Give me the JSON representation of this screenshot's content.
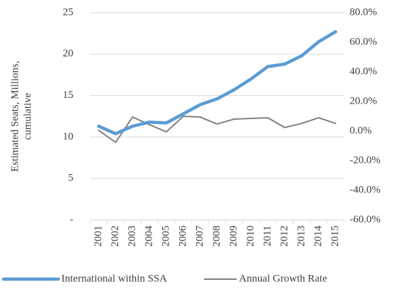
{
  "chart_data": {
    "type": "line",
    "ylabel": [
      "Estimated Seats, Millions,",
      "cumulative"
    ],
    "categories": [
      "2001",
      "2002",
      "2003",
      "2004",
      "2005",
      "2006",
      "2007",
      "2008",
      "2009",
      "2010",
      "2011",
      "2012",
      "2013",
      "2014",
      "2015"
    ],
    "series": [
      {
        "name": "International within SSA",
        "color": "#5b9bd5",
        "values": [
          11.3,
          10.4,
          11.3,
          11.8,
          11.7,
          12.8,
          13.9,
          14.6,
          15.7,
          17.0,
          18.5,
          18.8,
          19.8,
          21.5,
          22.7
        ]
      },
      {
        "name": "Annual Growth Rate",
        "color": "#808080",
        "axis": "y2",
        "values": [
          0.5,
          -7.6,
          9.5,
          4.3,
          -0.5,
          10,
          9.5,
          4.8,
          8.1,
          8.6,
          9,
          2.4,
          5.2,
          9,
          5.2
        ]
      }
    ],
    "ylim": [
      0,
      25
    ],
    "yticks": [
      {
        "value": 0,
        "label": "-"
      },
      5,
      10,
      15,
      20,
      25
    ],
    "y2lim": [
      -60,
      80
    ],
    "y2ticks": [
      {
        "value": -60,
        "label": "-60.0%"
      },
      {
        "value": -40,
        "label": "-40.0%"
      },
      {
        "value": -20,
        "label": "-20.0%"
      },
      {
        "value": 0,
        "label": "0.0%"
      },
      {
        "value": 20,
        "label": "20.0%"
      },
      {
        "value": 40,
        "label": "40.0%"
      },
      {
        "value": 60,
        "label": "60.0%"
      },
      {
        "value": 80,
        "label": "80.0%"
      }
    ],
    "grid": true
  }
}
